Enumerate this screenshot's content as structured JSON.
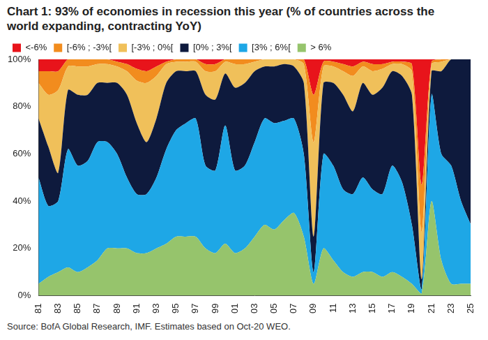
{
  "chart_data": {
    "type": "area",
    "title": "Chart 1: 93% of economies in recession this year (% of countries across the world expanding, contracting YoY)",
    "source": "Source: BofA Global Research, IMF. Estimates based on Oct-20 WEO.",
    "stacked": true,
    "grid": false,
    "legend": "top",
    "categories": [
      "81",
      null,
      "83",
      null,
      "85",
      null,
      "87",
      null,
      "89",
      null,
      "91",
      null,
      "93",
      null,
      "95",
      null,
      "97",
      null,
      "99",
      null,
      "01",
      null,
      "03",
      null,
      "05",
      null,
      "07",
      null,
      "09",
      null,
      "11",
      null,
      "13",
      null,
      "15",
      null,
      "17",
      null,
      "19",
      null,
      "21",
      null,
      "23",
      null,
      "25"
    ],
    "ylim": [
      0,
      100
    ],
    "yticks": [
      {
        "value": 0,
        "label": "0%"
      },
      {
        "value": 20,
        "label": "20%"
      },
      {
        "value": 40,
        "label": "40%"
      },
      {
        "value": 60,
        "label": "60%"
      },
      {
        "value": 80,
        "label": "80%"
      },
      {
        "value": 100,
        "label": "100%"
      }
    ],
    "series": [
      {
        "name": "<-6%",
        "color": "#e8141b",
        "values": [
          5,
          5,
          5,
          0,
          0,
          0,
          0,
          0,
          1,
          2,
          4,
          5,
          3,
          1,
          0,
          0,
          0,
          2,
          2,
          0,
          0,
          0,
          0,
          0,
          0,
          0,
          0,
          0,
          15,
          1,
          1,
          2,
          3,
          1,
          2,
          2,
          1,
          1,
          2,
          53,
          1,
          0,
          0,
          0,
          0
        ]
      },
      {
        "name": "[-6% ; -3%[",
        "color": "#f28c1e",
        "values": [
          5,
          10,
          8,
          3,
          3,
          3,
          2,
          2,
          2,
          3,
          5,
          5,
          4,
          1,
          1,
          1,
          1,
          3,
          3,
          1,
          2,
          2,
          1,
          0,
          0,
          0,
          0,
          2,
          20,
          2,
          2,
          3,
          4,
          2,
          3,
          2,
          1,
          1,
          3,
          20,
          1,
          1,
          0,
          0,
          0
        ]
      },
      {
        "name": "[-3% ; 0%[",
        "color": "#f0c05a",
        "values": [
          15,
          22,
          35,
          10,
          12,
          12,
          8,
          8,
          7,
          10,
          18,
          25,
          18,
          8,
          4,
          4,
          4,
          10,
          12,
          5,
          10,
          8,
          4,
          3,
          3,
          2,
          3,
          8,
          40,
          7,
          7,
          10,
          15,
          7,
          10,
          8,
          3,
          5,
          10,
          20,
          3,
          4,
          0,
          0,
          0
        ]
      },
      {
        "name": "[0% ; 3%[",
        "color": "#0e1a3d",
        "values": [
          25,
          25,
          12,
          25,
          30,
          28,
          25,
          25,
          30,
          35,
          30,
          22,
          25,
          28,
          25,
          22,
          20,
          30,
          30,
          22,
          35,
          35,
          30,
          22,
          24,
          24,
          22,
          30,
          15,
          30,
          35,
          40,
          35,
          40,
          40,
          45,
          40,
          45,
          55,
          4,
          10,
          35,
          45,
          60,
          70
        ]
      },
      {
        "name": "[3% ; 6%[",
        "color": "#1ea7e6",
        "values": [
          45,
          30,
          30,
          50,
          45,
          45,
          50,
          45,
          40,
          30,
          25,
          25,
          30,
          40,
          45,
          48,
          50,
          35,
          35,
          50,
          35,
          35,
          40,
          45,
          45,
          42,
          40,
          35,
          5,
          40,
          40,
          35,
          35,
          40,
          35,
          35,
          45,
          40,
          25,
          2,
          45,
          45,
          50,
          35,
          25
        ]
      },
      {
        "name": "> 6%",
        "color": "#96c46c",
        "values": [
          5,
          8,
          10,
          12,
          10,
          12,
          15,
          20,
          20,
          20,
          18,
          18,
          20,
          22,
          25,
          25,
          25,
          20,
          18,
          22,
          18,
          20,
          25,
          30,
          28,
          32,
          35,
          25,
          5,
          20,
          15,
          10,
          8,
          10,
          10,
          8,
          10,
          8,
          5,
          1,
          40,
          15,
          5,
          5,
          5
        ]
      }
    ]
  }
}
